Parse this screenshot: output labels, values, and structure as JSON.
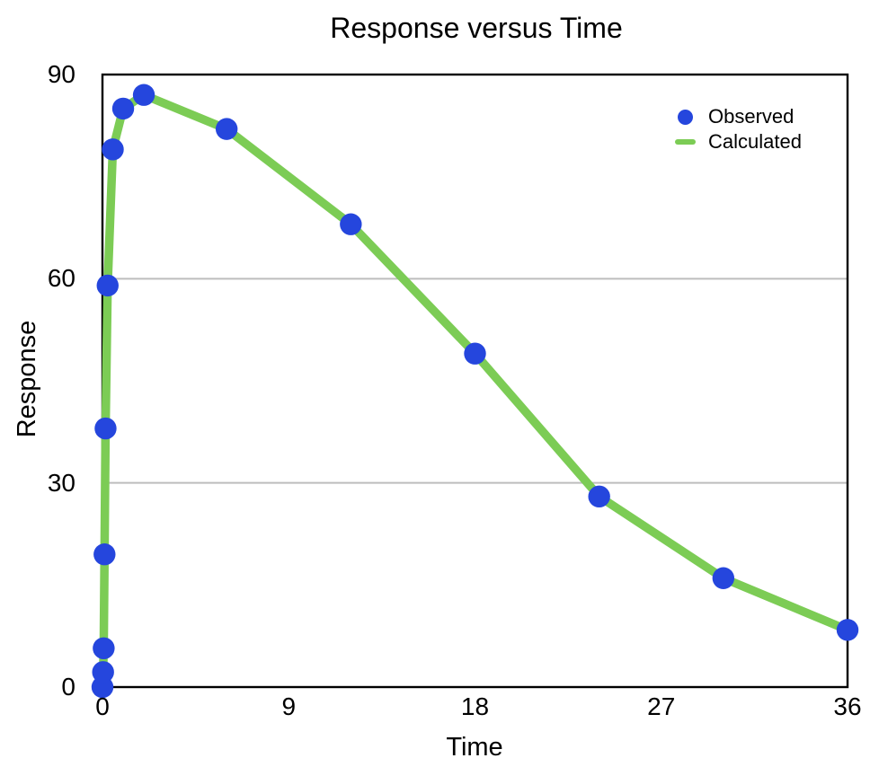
{
  "chart_data": {
    "type": "scatter",
    "title": "Response versus Time",
    "xlabel": "Time",
    "ylabel": "Response",
    "xlim": [
      0,
      36
    ],
    "ylim": [
      0,
      90
    ],
    "x_ticks": [
      0,
      9,
      18,
      27,
      36
    ],
    "y_ticks": [
      0,
      30,
      60,
      90
    ],
    "gridlines_y": [
      30,
      60
    ],
    "grid_on": true,
    "legend_position": "top-right-inside",
    "colors": {
      "observed": "#2546dd",
      "calculated": "#7ccc55",
      "grid": "#bdbdbd",
      "axis_frame": "#000000",
      "text": "#000000",
      "background": "#ffffff"
    },
    "series": [
      {
        "name": "Observed",
        "type": "scatter",
        "marker": "circle",
        "color": "#2546dd",
        "x": [
          0,
          0.03,
          0.06,
          0.1,
          0.15,
          0.25,
          0.5,
          1,
          2,
          6,
          12,
          18,
          24,
          30,
          36
        ],
        "y": [
          0,
          2.2,
          5.7,
          19.5,
          38,
          59,
          79,
          85,
          87,
          82,
          68,
          49,
          28,
          16,
          8.4
        ]
      },
      {
        "name": "Calculated",
        "type": "line",
        "color": "#7ccc55",
        "x": [
          0,
          0.03,
          0.06,
          0.1,
          0.15,
          0.25,
          0.5,
          1,
          2,
          6,
          12,
          18,
          24,
          30,
          36
        ],
        "y": [
          0,
          2.2,
          5.7,
          19.5,
          38,
          59,
          79,
          85,
          87,
          82,
          68,
          49,
          28,
          16,
          8.4
        ]
      }
    ]
  }
}
